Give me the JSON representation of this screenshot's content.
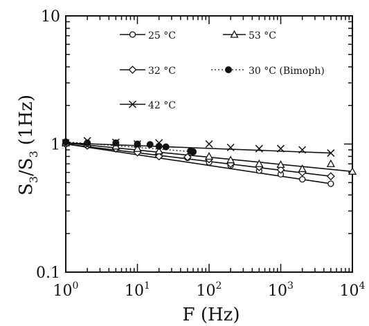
{
  "chart_data": {
    "type": "line",
    "xlabel": "F (Hz)",
    "ylabel": "S3/S3 (1Hz)",
    "ylabel_main": "S",
    "ylabel_sub1": "3",
    "ylabel_slash": "/S",
    "ylabel_sub2": "3",
    "ylabel_paren": "(1Hz)",
    "x_scale": "log",
    "y_scale": "log",
    "xlim": [
      1,
      10000
    ],
    "ylim": [
      0.1,
      10
    ],
    "x_ticks": [
      {
        "base": "10",
        "exp": "0"
      },
      {
        "base": "10",
        "exp": "1"
      },
      {
        "base": "10",
        "exp": "2"
      },
      {
        "base": "10",
        "exp": "3"
      },
      {
        "base": "10",
        "exp": "4"
      }
    ],
    "y_ticks": [
      "0.1",
      "1",
      "10"
    ],
    "grid": false,
    "legend_position": "top",
    "series": [
      {
        "name": "25 °C",
        "marker": "circle-open",
        "points": [
          [
            1,
            1.0
          ],
          [
            2,
            0.97
          ],
          [
            5,
            0.93
          ],
          [
            10,
            0.89
          ],
          [
            20,
            0.85
          ],
          [
            50,
            0.78
          ],
          [
            100,
            0.72
          ],
          [
            200,
            0.68
          ],
          [
            500,
            0.62
          ],
          [
            1000,
            0.58
          ],
          [
            2000,
            0.53
          ],
          [
            5000,
            0.49
          ]
        ]
      },
      {
        "name": "32 °C",
        "marker": "diamond-open",
        "points": [
          [
            1,
            1.0
          ],
          [
            2,
            0.97
          ],
          [
            5,
            0.92
          ],
          [
            10,
            0.86
          ],
          [
            20,
            0.8
          ],
          [
            50,
            0.79
          ],
          [
            100,
            0.76
          ],
          [
            200,
            0.7
          ],
          [
            500,
            0.66
          ],
          [
            1000,
            0.63
          ],
          [
            2000,
            0.6
          ],
          [
            5000,
            0.56
          ]
        ]
      },
      {
        "name": "42 °C",
        "marker": "cross",
        "points": [
          [
            1,
            1.02
          ],
          [
            2,
            1.06
          ],
          [
            5,
            1.03
          ],
          [
            10,
            1.0
          ],
          [
            20,
            1.02
          ],
          [
            100,
            1.0
          ],
          [
            200,
            0.94
          ],
          [
            500,
            0.92
          ],
          [
            1000,
            0.92
          ],
          [
            2000,
            0.9
          ],
          [
            5000,
            0.85
          ]
        ]
      },
      {
        "name": "53 °C",
        "marker": "triangle-open",
        "points": [
          [
            1,
            1.02
          ],
          [
            2,
            1.0
          ],
          [
            5,
            0.96
          ],
          [
            10,
            0.92
          ],
          [
            20,
            0.88
          ],
          [
            100,
            0.8
          ],
          [
            200,
            0.75
          ],
          [
            500,
            0.7
          ],
          [
            1000,
            0.69
          ],
          [
            2000,
            0.64
          ],
          [
            5000,
            0.7
          ],
          [
            10000,
            0.61
          ]
        ]
      },
      {
        "name": "30 °C (Bimoph)",
        "marker": "circle-filled",
        "dashed": true,
        "points": [
          [
            1,
            1.04
          ],
          [
            2,
            1.02
          ],
          [
            5,
            1.02
          ],
          [
            10,
            1.0
          ],
          [
            15,
            0.99
          ],
          [
            20,
            0.96
          ],
          [
            25,
            0.95
          ],
          [
            55,
            0.88
          ],
          [
            60,
            0.87
          ]
        ]
      }
    ],
    "legend": [
      {
        "label": "25 °C"
      },
      {
        "label": "53 °C"
      },
      {
        "label": "32 °C"
      },
      {
        "label": "30 °C (Bimoph)"
      },
      {
        "label": "42 °C"
      }
    ]
  }
}
